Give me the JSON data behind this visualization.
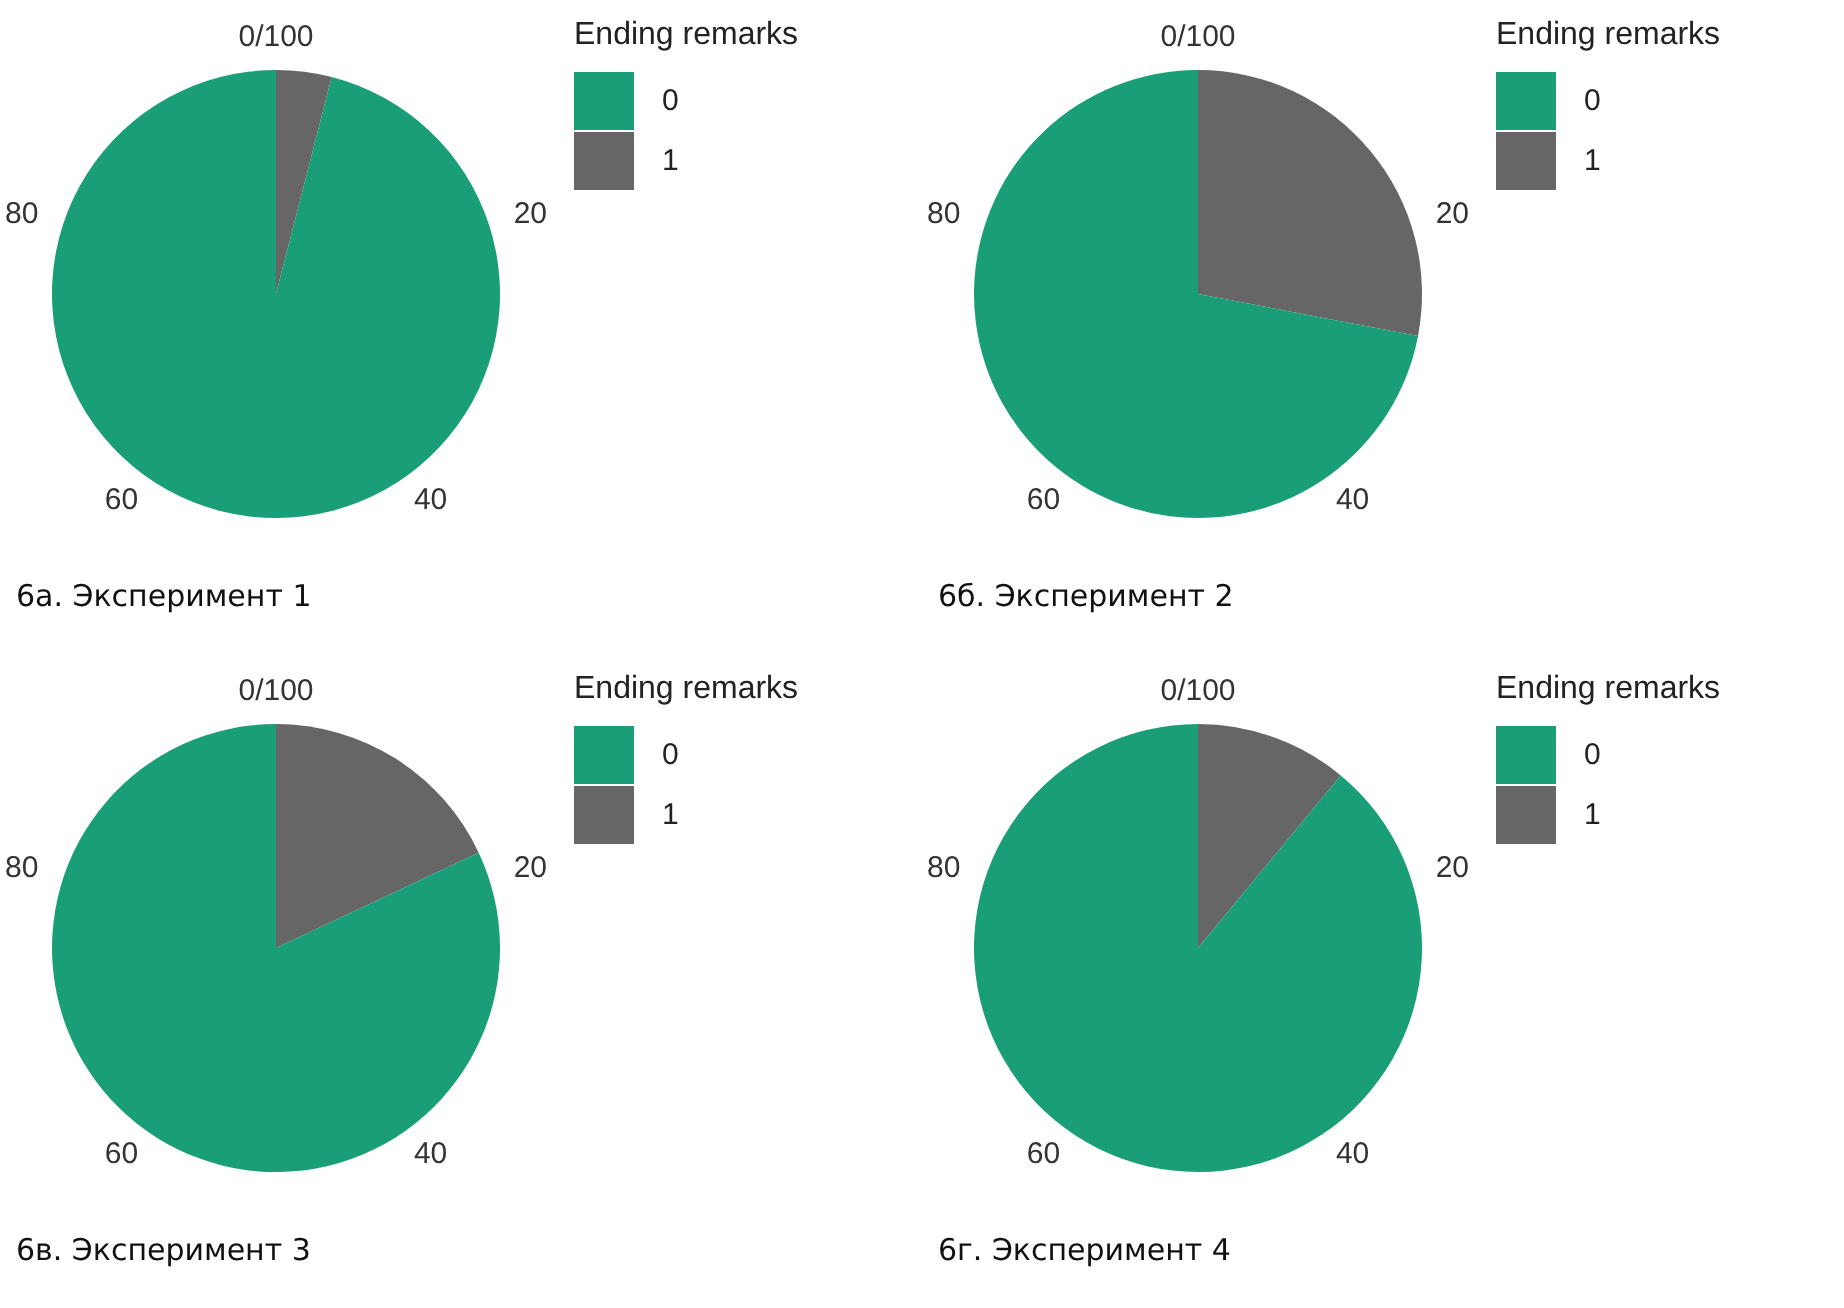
{
  "chart_data": [
    {
      "type": "pie",
      "title": "6а. Эксперимент 1",
      "legend_title": "Ending remarks",
      "categories": [
        "0",
        "1"
      ],
      "values": [
        96,
        4
      ],
      "colors": [
        "#1a9e77",
        "#666666"
      ],
      "annotations": [
        "0/100",
        "20",
        "40",
        "60",
        "80"
      ],
      "legend": "right"
    },
    {
      "type": "pie",
      "title": "6б. Эксперимент 2",
      "legend_title": "Ending remarks",
      "categories": [
        "0",
        "1"
      ],
      "values": [
        72,
        28
      ],
      "colors": [
        "#1a9e77",
        "#666666"
      ],
      "annotations": [
        "0/100",
        "20",
        "40",
        "60",
        "80"
      ],
      "legend": "right"
    },
    {
      "type": "pie",
      "title": "6в. Эксперимент 3",
      "legend_title": "Ending remarks",
      "categories": [
        "0",
        "1"
      ],
      "values": [
        82,
        18
      ],
      "colors": [
        "#1a9e77",
        "#666666"
      ],
      "annotations": [
        "0/100",
        "20",
        "40",
        "60",
        "80"
      ],
      "legend": "right"
    },
    {
      "type": "pie",
      "title": "6г. Эксперимент 4",
      "legend_title": "Ending remarks",
      "categories": [
        "0",
        "1"
      ],
      "values": [
        89,
        11
      ],
      "colors": [
        "#1a9e77",
        "#666666"
      ],
      "annotations": [
        "0/100",
        "20",
        "40",
        "60",
        "80"
      ],
      "legend": "right"
    }
  ]
}
